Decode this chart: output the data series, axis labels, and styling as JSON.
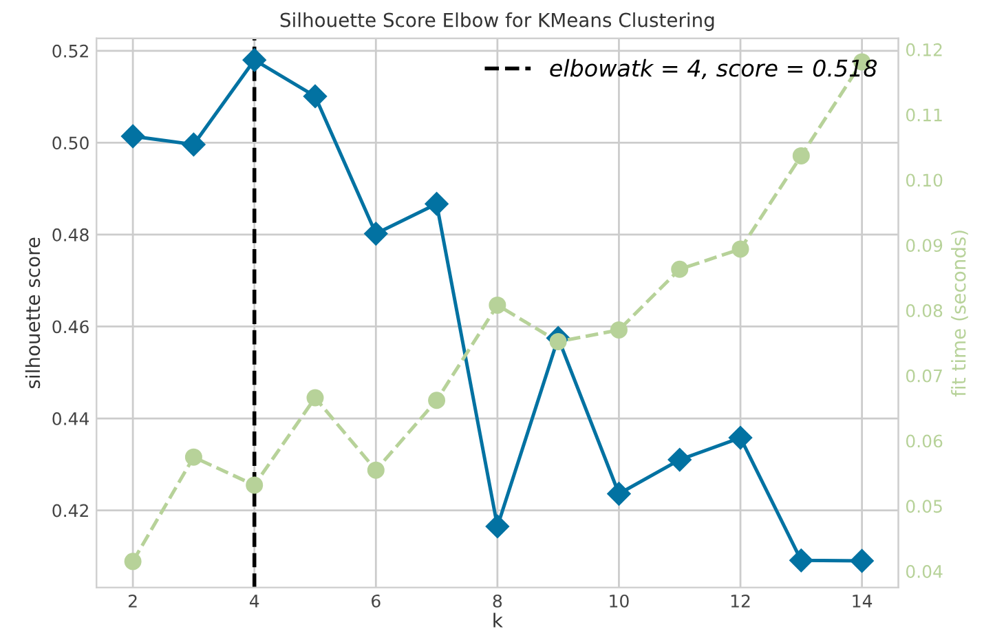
{
  "chart_data": {
    "type": "line",
    "title": "Silhouette Score Elbow for KMeans Clustering",
    "xlabel": "k",
    "ylabel": "silhouette score",
    "y2label": "fit time (seconds)",
    "x": [
      2,
      3,
      4,
      5,
      6,
      7,
      8,
      9,
      10,
      11,
      12,
      13,
      14
    ],
    "series": [
      {
        "color": "#0272a2",
        "marker": "diamond",
        "line_style": "solid",
        "values": [
          0.5014,
          0.4996,
          0.518,
          0.5101,
          0.4802,
          0.4867,
          0.4165,
          0.4575,
          0.4236,
          0.431,
          0.4358,
          0.4091,
          0.409
        ]
      },
      {
        "color": "#b7d299",
        "marker": "circle",
        "line_style": "dashed",
        "axis": "y2",
        "values": [
          0.0415,
          0.0575,
          0.0532,
          0.0666,
          0.0555,
          0.0662,
          0.0808,
          0.0752,
          0.077,
          0.0863,
          0.0894,
          0.1037,
          0.1181
        ]
      }
    ],
    "xlim": [
      1.4,
      14.6
    ],
    "xticks": [
      2,
      4,
      6,
      8,
      10,
      12,
      14
    ],
    "ylim": [
      0.4032,
      0.5227
    ],
    "yticks": [
      0.42,
      0.44,
      0.46,
      0.48,
      {
        "value": 0.5,
        "label": "0.50"
      },
      0.52
    ],
    "y2lim": [
      0.0375,
      0.1217
    ],
    "y2ticks": [
      0.04,
      0.05,
      0.06,
      0.07,
      0.08,
      0.09,
      {
        "value": 0.1,
        "label": "0.10"
      },
      0.11,
      0.12
    ],
    "ref_lines": [
      {
        "axis": "x",
        "value": 4,
        "label": "elbowatk = 4, score = 0.518",
        "color": "#000000",
        "line_style": "dashed"
      }
    ],
    "grid": true,
    "legend": "top right"
  }
}
